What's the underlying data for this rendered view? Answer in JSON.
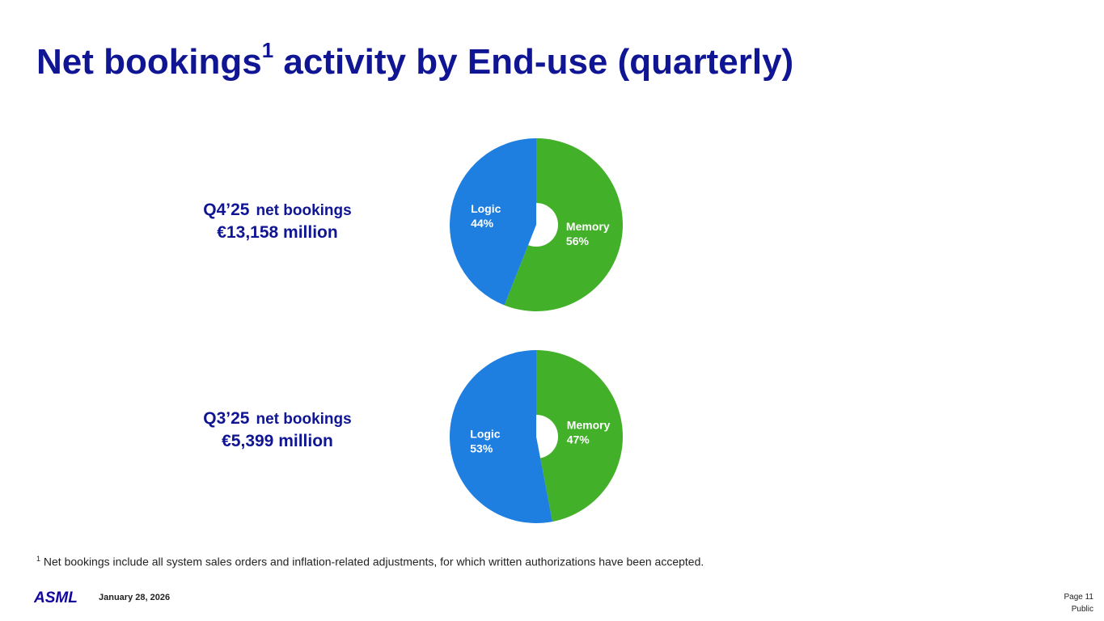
{
  "slide": {
    "title_main": "Net bookings",
    "title_sup": "1",
    "title_rest": " activity by End-use (quarterly)",
    "footnote_mark": "1",
    "footnote_text": " Net bookings include all system sales orders and inflation-related adjustments, for which written authorizations have been accepted.",
    "date": "January 28, 2026",
    "page": "Page 11",
    "classification": "Public",
    "logo_text": "ASML"
  },
  "colors": {
    "title": "#0f1593",
    "memory": "#43b02a",
    "logo": "#10069f",
    "logic": "#1e7fe0"
  },
  "chart_data": [
    {
      "type": "pie",
      "quarter": "Q4’25",
      "label": "net bookings",
      "amount": "€13,158 million",
      "slices": [
        {
          "name": "Memory",
          "value": 56,
          "value_label": "56%"
        },
        {
          "name": "Logic",
          "value": 44,
          "value_label": "44%"
        }
      ]
    },
    {
      "type": "pie",
      "quarter": "Q3’25",
      "label": "net bookings",
      "amount": "€5,399 million",
      "slices": [
        {
          "name": "Memory",
          "value": 47,
          "value_label": "47%"
        },
        {
          "name": "Logic",
          "value": 53,
          "value_label": "53%"
        }
      ]
    }
  ]
}
